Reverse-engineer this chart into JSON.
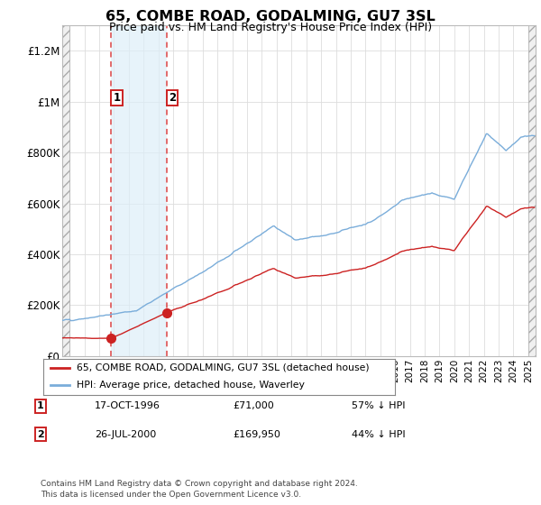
{
  "title": "65, COMBE ROAD, GODALMING, GU7 3SL",
  "subtitle": "Price paid vs. HM Land Registry's House Price Index (HPI)",
  "hpi_color": "#7aadda",
  "price_color": "#cc2222",
  "sale1_year": 1996.79,
  "sale1_price": 71000,
  "sale2_year": 2000.55,
  "sale2_price": 169950,
  "legend_label_price": "65, COMBE ROAD, GODALMING, GU7 3SL (detached house)",
  "legend_label_hpi": "HPI: Average price, detached house, Waverley",
  "table": [
    {
      "num": "1",
      "date": "17-OCT-1996",
      "price": "£71,000",
      "change": "57% ↓ HPI"
    },
    {
      "num": "2",
      "date": "26-JUL-2000",
      "price": "£169,950",
      "change": "44% ↓ HPI"
    }
  ],
  "footnote": "Contains HM Land Registry data © Crown copyright and database right 2024.\nThis data is licensed under the Open Government Licence v3.0.",
  "xmin": 1993.5,
  "xmax": 2025.5,
  "ymin": 0,
  "ymax": 1300000,
  "yticks": [
    0,
    200000,
    400000,
    600000,
    800000,
    1000000,
    1200000
  ],
  "ytick_labels": [
    "£0",
    "£200K",
    "£400K",
    "£600K",
    "£800K",
    "£1M",
    "£1.2M"
  ]
}
